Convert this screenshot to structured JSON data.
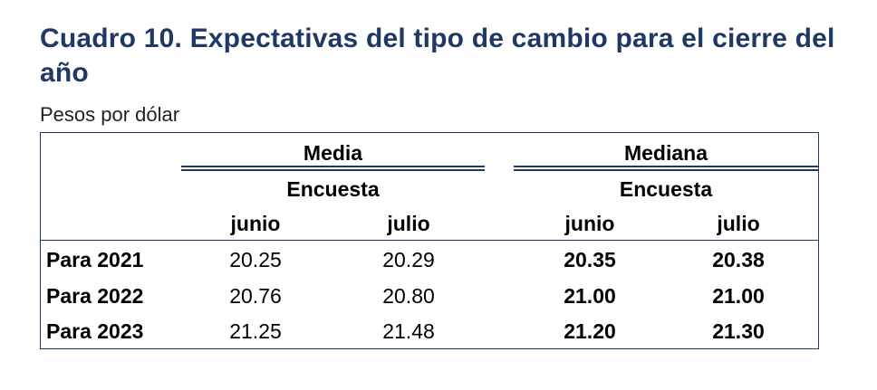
{
  "title": "Cuadro 10. Expectativas del tipo de cambio para el cierre del año",
  "subtitle": "Pesos por dólar",
  "table": {
    "group_headers": [
      "Media",
      "Mediana"
    ],
    "subgroup_headers": [
      "Encuesta",
      "Encuesta"
    ],
    "columns": [
      "junio",
      "julio",
      "junio",
      "julio"
    ],
    "rows": [
      {
        "label": "Para 2021",
        "values": [
          "20.25",
          "20.29",
          "20.35",
          "20.38"
        ]
      },
      {
        "label": "Para 2022",
        "values": [
          "20.76",
          "20.80",
          "21.00",
          "21.00"
        ]
      },
      {
        "label": "Para 2023",
        "values": [
          "21.25",
          "21.48",
          "21.20",
          "21.30"
        ]
      }
    ]
  }
}
